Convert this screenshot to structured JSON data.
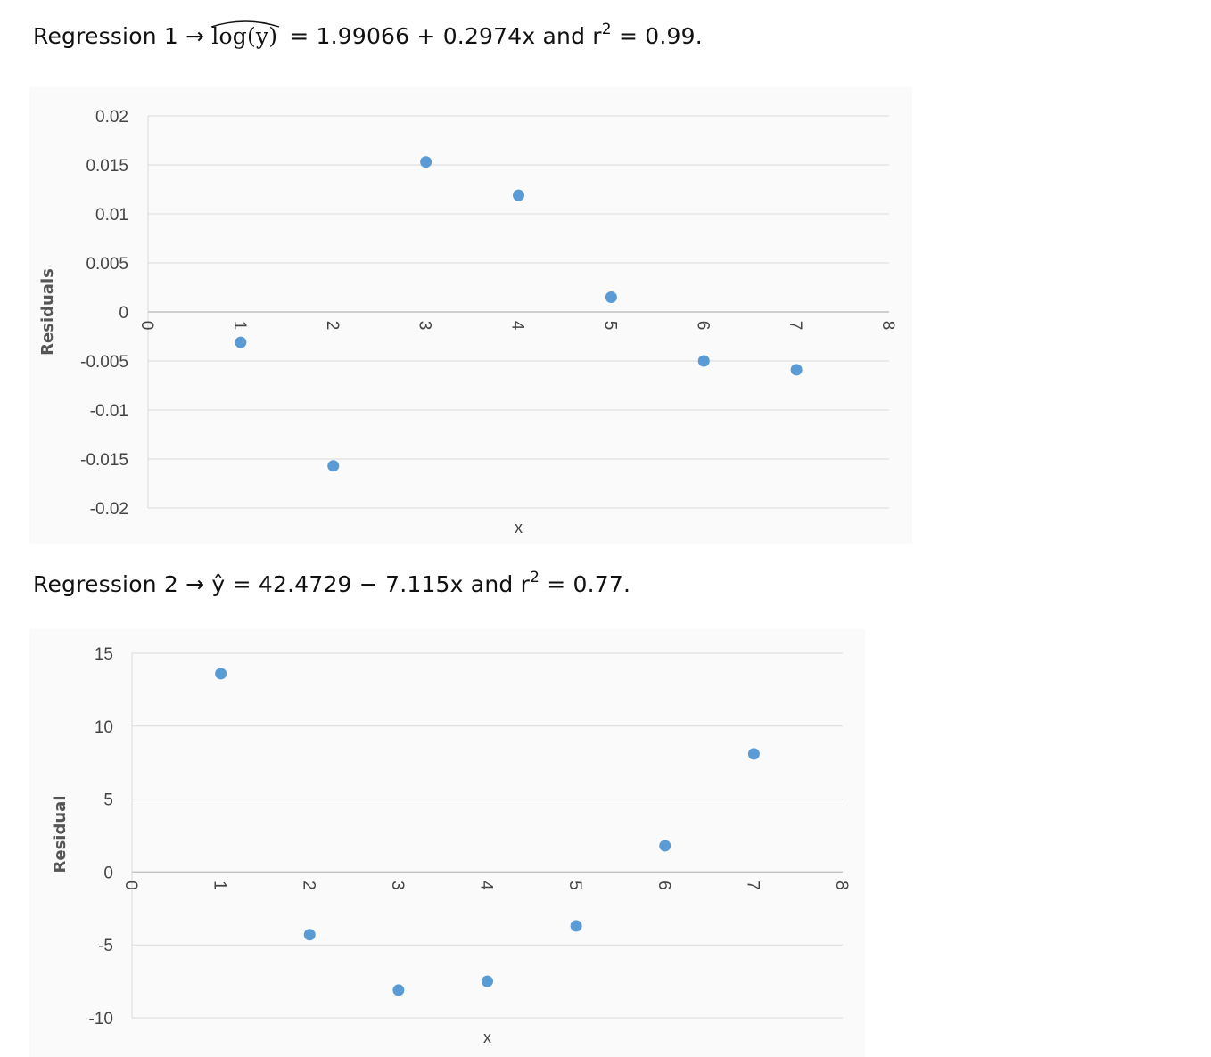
{
  "equations": {
    "reg1": {
      "prefix": "Regression 1 →",
      "lhs": "log(y)",
      "rhs": "= 1.99066 + 0.2974x and r",
      "exp": "2",
      "tail": " = 0.99."
    },
    "reg2": {
      "prefix": "Regression 2 → ŷ = 42.4729 − 7.115x and r",
      "exp": "2",
      "tail": " = 0.77."
    }
  },
  "chart_data": [
    {
      "type": "scatter",
      "title": "",
      "xlabel": "x",
      "ylabel": "Residuals",
      "xlim": [
        0,
        8
      ],
      "ylim": [
        -0.02,
        0.02
      ],
      "xticks": [
        "0",
        "1",
        "2",
        "3",
        "4",
        "5",
        "6",
        "7",
        "8"
      ],
      "yticks": [
        "0.02",
        "0.015",
        "0.01",
        "0.005",
        "0",
        "-0.005",
        "-0.01",
        "-0.015",
        "-0.02"
      ],
      "grid": true,
      "color": "#5b9bd5",
      "points": [
        {
          "x": 1,
          "y": -0.0031
        },
        {
          "x": 2,
          "y": -0.0157
        },
        {
          "x": 3,
          "y": 0.0153
        },
        {
          "x": 4,
          "y": 0.0119
        },
        {
          "x": 5,
          "y": 0.0015
        },
        {
          "x": 6,
          "y": -0.005
        },
        {
          "x": 7,
          "y": -0.0059
        }
      ]
    },
    {
      "type": "scatter",
      "title": "",
      "xlabel": "x",
      "ylabel": "Residual",
      "xlim": [
        0,
        8
      ],
      "ylim": [
        -10,
        15
      ],
      "xticks": [
        "0",
        "1",
        "2",
        "3",
        "4",
        "5",
        "6",
        "7",
        "8"
      ],
      "yticks": [
        "15",
        "10",
        "5",
        "0",
        "-5",
        "-10"
      ],
      "grid": true,
      "color": "#5b9bd5",
      "points": [
        {
          "x": 1,
          "y": 13.6
        },
        {
          "x": 2,
          "y": -4.3
        },
        {
          "x": 3,
          "y": -8.1
        },
        {
          "x": 4,
          "y": -7.5
        },
        {
          "x": 5,
          "y": -3.7
        },
        {
          "x": 6,
          "y": 1.8
        },
        {
          "x": 7,
          "y": 8.1
        }
      ]
    }
  ]
}
